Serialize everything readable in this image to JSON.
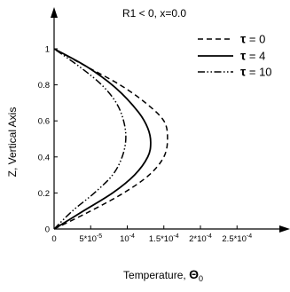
{
  "chart_data": {
    "type": "line",
    "title": "R1 < 0, x=0.0",
    "xlabel": "Temperature, ",
    "xlabel_symbol": "Θ",
    "xlabel_sub": "0",
    "ylabel": "Z, Vertical Axis",
    "xlim": [
      0,
      0.00032
    ],
    "ylim": [
      0,
      1.1
    ],
    "grid": false,
    "legend_position": "top-right",
    "legend_symbol": "τ",
    "xticks": [
      {
        "value": 0,
        "label": "0"
      },
      {
        "value": 5e-05,
        "label": "5*10",
        "exp": "-5"
      },
      {
        "value": 0.0001,
        "label": "10",
        "exp": "-4"
      },
      {
        "value": 0.00015,
        "label": "1.5*10",
        "exp": "-4"
      },
      {
        "value": 0.0002,
        "label": "2*10",
        "exp": "-4"
      },
      {
        "value": 0.00025,
        "label": "2.5*10",
        "exp": "-4"
      }
    ],
    "yticks": [
      {
        "value": 0,
        "label": "0"
      },
      {
        "value": 0.2,
        "label": "0.2"
      },
      {
        "value": 0.4,
        "label": "0.4"
      },
      {
        "value": 0.6,
        "label": "0.6"
      },
      {
        "value": 0.8,
        "label": "0.8"
      },
      {
        "value": 1,
        "label": "1"
      }
    ],
    "series": [
      {
        "name": "= 0",
        "style": "dashed",
        "points": [
          [
            0,
            0
          ],
          [
            5e-05,
            0.1
          ],
          [
            9.5e-05,
            0.2
          ],
          [
            0.00013,
            0.3
          ],
          [
            0.00015,
            0.4
          ],
          [
            0.000155,
            0.5
          ],
          [
            0.00015,
            0.6
          ],
          [
            0.000125,
            0.7
          ],
          [
            9e-05,
            0.8
          ],
          [
            4.5e-05,
            0.9
          ],
          [
            0,
            1.0
          ]
        ]
      },
      {
        "name": "= 4",
        "style": "solid",
        "points": [
          [
            0,
            0
          ],
          [
            4e-05,
            0.1
          ],
          [
            8e-05,
            0.2
          ],
          [
            0.00011,
            0.3
          ],
          [
            0.000128,
            0.4
          ],
          [
            0.000132,
            0.48
          ],
          [
            0.000128,
            0.56
          ],
          [
            0.000115,
            0.65
          ],
          [
            8.5e-05,
            0.78
          ],
          [
            4.5e-05,
            0.9
          ],
          [
            0,
            1.0
          ]
        ]
      },
      {
        "name": "= 10",
        "style": "dashdotdot",
        "points": [
          [
            0,
            0
          ],
          [
            2.5e-05,
            0.1
          ],
          [
            5.5e-05,
            0.2
          ],
          [
            8e-05,
            0.3
          ],
          [
            9.3e-05,
            0.4
          ],
          [
            9.8e-05,
            0.5
          ],
          [
            9.5e-05,
            0.6
          ],
          [
            8.5e-05,
            0.7
          ],
          [
            6.5e-05,
            0.8
          ],
          [
            3.5e-05,
            0.9
          ],
          [
            0,
            1.0
          ]
        ]
      }
    ]
  }
}
